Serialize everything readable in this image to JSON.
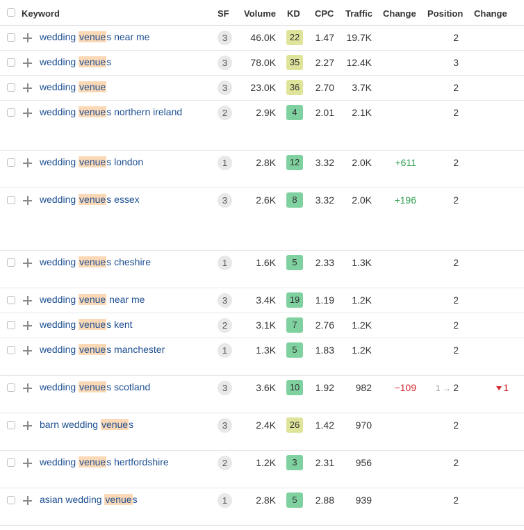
{
  "header": {
    "keyword": "Keyword",
    "sf": "SF",
    "volume": "Volume",
    "kd": "KD",
    "cpc": "CPC",
    "traffic": "Traffic",
    "change": "Change",
    "position": "Position",
    "change2": "Change"
  },
  "colors": {
    "kd_green": "#7fd1a0",
    "kd_yellow": "#dfe49a",
    "link": "#1d4f91",
    "highlight": "#fcd9b6",
    "positive": "#2e9e4f",
    "negative": "#d4242d"
  },
  "rows": [
    {
      "pre": "wedding ",
      "hl": "venue",
      "post": "s near me",
      "sf": "3",
      "volume": "46.0K",
      "kd": "22",
      "kd_color": "yellow",
      "cpc": "1.47",
      "traffic": "19.7K",
      "change": "",
      "position": "2",
      "position_prev": "",
      "change2": ""
    },
    {
      "pre": "wedding ",
      "hl": "venue",
      "post": "s",
      "sf": "3",
      "volume": "78.0K",
      "kd": "35",
      "kd_color": "yellow",
      "cpc": "2.27",
      "traffic": "12.4K",
      "change": "",
      "position": "3",
      "position_prev": "",
      "change2": ""
    },
    {
      "pre": "wedding ",
      "hl": "venue",
      "post": "",
      "sf": "3",
      "volume": "23.0K",
      "kd": "36",
      "kd_color": "yellow",
      "cpc": "2.70",
      "traffic": "3.7K",
      "change": "",
      "position": "2",
      "position_prev": "",
      "change2": ""
    },
    {
      "pre": "wedding ",
      "hl": "venue",
      "post": "s northern ireland",
      "sf": "2",
      "volume": "2.9K",
      "kd": "4",
      "kd_color": "green",
      "cpc": "2.01",
      "traffic": "2.1K",
      "change": "",
      "position": "2",
      "position_prev": "",
      "change2": ""
    },
    {
      "pre": "wedding ",
      "hl": "venue",
      "post": "s london",
      "sf": "1",
      "volume": "2.8K",
      "kd": "12",
      "kd_color": "green",
      "cpc": "3.32",
      "traffic": "2.0K",
      "change": "+611",
      "position": "2",
      "position_prev": "",
      "change2": ""
    },
    {
      "pre": "wedding ",
      "hl": "venue",
      "post": "s essex",
      "sf": "3",
      "volume": "2.6K",
      "kd": "8",
      "kd_color": "green",
      "cpc": "3.32",
      "traffic": "2.0K",
      "change": "+196",
      "position": "2",
      "position_prev": "",
      "change2": ""
    },
    {
      "pre": "wedding ",
      "hl": "venue",
      "post": "s cheshire",
      "sf": "1",
      "volume": "1.6K",
      "kd": "5",
      "kd_color": "green",
      "cpc": "2.33",
      "traffic": "1.3K",
      "change": "",
      "position": "2",
      "position_prev": "",
      "change2": ""
    },
    {
      "pre": "wedding ",
      "hl": "venue",
      "post": " near me",
      "sf": "3",
      "volume": "3.4K",
      "kd": "19",
      "kd_color": "green",
      "cpc": "1.19",
      "traffic": "1.2K",
      "change": "",
      "position": "2",
      "position_prev": "",
      "change2": ""
    },
    {
      "pre": "wedding ",
      "hl": "venue",
      "post": "s kent",
      "sf": "2",
      "volume": "3.1K",
      "kd": "7",
      "kd_color": "green",
      "cpc": "2.76",
      "traffic": "1.2K",
      "change": "",
      "position": "2",
      "position_prev": "",
      "change2": ""
    },
    {
      "pre": "wedding ",
      "hl": "venue",
      "post": "s manchester",
      "sf": "1",
      "volume": "1.3K",
      "kd": "5",
      "kd_color": "green",
      "cpc": "1.83",
      "traffic": "1.2K",
      "change": "",
      "position": "2",
      "position_prev": "",
      "change2": ""
    },
    {
      "pre": "wedding ",
      "hl": "venue",
      "post": "s scotland",
      "sf": "3",
      "volume": "3.6K",
      "kd": "10",
      "kd_color": "green",
      "cpc": "1.92",
      "traffic": "982",
      "change": "−109",
      "position": "2",
      "position_prev": "1",
      "change2": "1"
    },
    {
      "pre": "barn wedding ",
      "hl": "venue",
      "post": "s",
      "sf": "3",
      "volume": "2.4K",
      "kd": "26",
      "kd_color": "yellow",
      "cpc": "1.42",
      "traffic": "970",
      "change": "",
      "position": "2",
      "position_prev": "",
      "change2": ""
    },
    {
      "pre": "wedding ",
      "hl": "venue",
      "post": "s hertfordshire",
      "sf": "2",
      "volume": "1.2K",
      "kd": "3",
      "kd_color": "green",
      "cpc": "2.31",
      "traffic": "956",
      "change": "",
      "position": "2",
      "position_prev": "",
      "change2": ""
    },
    {
      "pre": "asian wedding ",
      "hl": "venue",
      "post": "s",
      "sf": "1",
      "volume": "2.8K",
      "kd": "5",
      "kd_color": "green",
      "cpc": "2.88",
      "traffic": "939",
      "change": "",
      "position": "2",
      "position_prev": "",
      "change2": ""
    }
  ]
}
